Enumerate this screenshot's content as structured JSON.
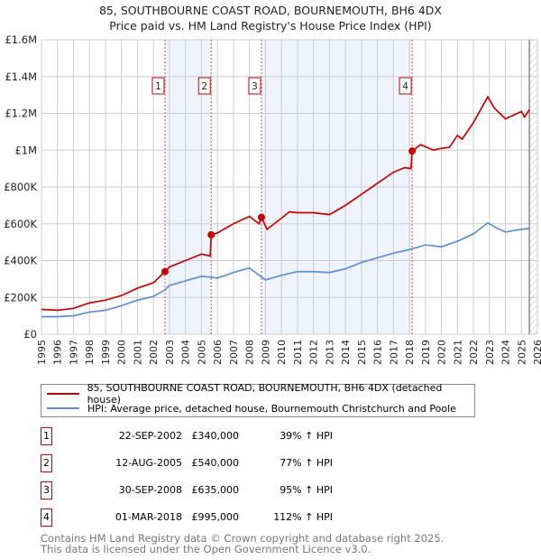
{
  "chart_data": {
    "type": "line",
    "title": "85, SOUTHBOURNE COAST ROAD, BOURNEMOUTH, BH6 4DX",
    "subtitle": "Price paid vs. HM Land Registry's House Price Index (HPI)",
    "xlim": [
      1995,
      2026
    ],
    "ylim": [
      0,
      1600000
    ],
    "x_ticks": [
      "1995",
      "1996",
      "1997",
      "1998",
      "1999",
      "2000",
      "2001",
      "2002",
      "2003",
      "2004",
      "2005",
      "2006",
      "2007",
      "2008",
      "2009",
      "2010",
      "2011",
      "2012",
      "2013",
      "2014",
      "2015",
      "2016",
      "2017",
      "2018",
      "2019",
      "2020",
      "2021",
      "2022",
      "2023",
      "2024",
      "2025",
      "2026"
    ],
    "y_ticks": [
      {
        "v": 0,
        "label": "£0"
      },
      {
        "v": 200000,
        "label": "£200K"
      },
      {
        "v": 400000,
        "label": "£400K"
      },
      {
        "v": 600000,
        "label": "£600K"
      },
      {
        "v": 800000,
        "label": "£800K"
      },
      {
        "v": 1000000,
        "label": "£1M"
      },
      {
        "v": 1200000,
        "label": "£1.2M"
      },
      {
        "v": 1400000,
        "label": "£1.4M"
      },
      {
        "v": 1600000,
        "label": "£1.6M"
      }
    ],
    "grid": true,
    "series": [
      {
        "name": "85, SOUTHBOURNE COAST ROAD, BOURNEMOUTH, BH6 4DX (detached house)",
        "color": "#cc0000",
        "x": [
          1995,
          1996,
          1997,
          1998,
          1999,
          2000,
          2001,
          2002,
          2002.72,
          2003,
          2004,
          2005,
          2005.55,
          2005.61,
          2006,
          2007,
          2008,
          2008.6,
          2008.75,
          2009.1,
          2010,
          2010.5,
          2011,
          2012,
          2013,
          2014,
          2015,
          2016,
          2017,
          2017.7,
          2018.1,
          2018.17,
          2018.7,
          2019.5,
          2020,
          2020.5,
          2021,
          2021.3,
          2022,
          2022.9,
          2023.3,
          2024,
          2024.5,
          2025,
          2025.2,
          2025.5
        ],
        "y": [
          135000,
          130000,
          140000,
          170000,
          185000,
          210000,
          250000,
          280000,
          340000,
          365000,
          400000,
          435000,
          425000,
          540000,
          550000,
          600000,
          640000,
          600000,
          635000,
          570000,
          630000,
          665000,
          660000,
          660000,
          650000,
          700000,
          760000,
          820000,
          880000,
          905000,
          900000,
          995000,
          1030000,
          1000000,
          1010000,
          1015000,
          1080000,
          1060000,
          1150000,
          1290000,
          1230000,
          1170000,
          1190000,
          1210000,
          1180000,
          1220000
        ]
      },
      {
        "name": "HPI: Average price, detached house, Bournemouth Christchurch and Poole",
        "color": "#5b8fd4",
        "x": [
          1995,
          1996,
          1997,
          1998,
          1999,
          2000,
          2001,
          2002,
          2002.7,
          2003,
          2004,
          2005,
          2006,
          2007,
          2008,
          2009,
          2010,
          2011,
          2012,
          2013,
          2014,
          2015,
          2016,
          2017,
          2018,
          2019,
          2020,
          2021,
          2022,
          2022.9,
          2023.5,
          2024,
          2025,
          2025.5
        ],
        "y": [
          95000,
          95000,
          100000,
          120000,
          130000,
          155000,
          185000,
          205000,
          240000,
          265000,
          290000,
          315000,
          305000,
          335000,
          360000,
          295000,
          320000,
          340000,
          340000,
          335000,
          355000,
          390000,
          415000,
          440000,
          460000,
          485000,
          475000,
          505000,
          545000,
          605000,
          575000,
          555000,
          570000,
          575000
        ]
      }
    ],
    "sales": [
      {
        "n": "1",
        "x": 2002.72,
        "y": 340000,
        "date": "22-SEP-2002",
        "price": "£340,000",
        "hpi": "39% ↑ HPI"
      },
      {
        "n": "2",
        "x": 2005.61,
        "y": 540000,
        "date": "12-AUG-2005",
        "price": "£540,000",
        "hpi": "77% ↑ HPI"
      },
      {
        "n": "3",
        "x": 2008.75,
        "y": 635000,
        "date": "30-SEP-2008",
        "price": "£635,000",
        "hpi": "95% ↑ HPI"
      },
      {
        "n": "4",
        "x": 2018.17,
        "y": 995000,
        "date": "01-MAR-2018",
        "price": "£995,000",
        "hpi": "112% ↑ HPI"
      }
    ],
    "shaded_ranges": [
      [
        2002.72,
        2005.61
      ],
      [
        2008.75,
        2018.17
      ]
    ],
    "forecast_from": 2025.5
  },
  "footer": {
    "line1": "Contains HM Land Registry data © Crown copyright and database right 2025.",
    "line2": "This data is licensed under the Open Government Licence v3.0."
  }
}
